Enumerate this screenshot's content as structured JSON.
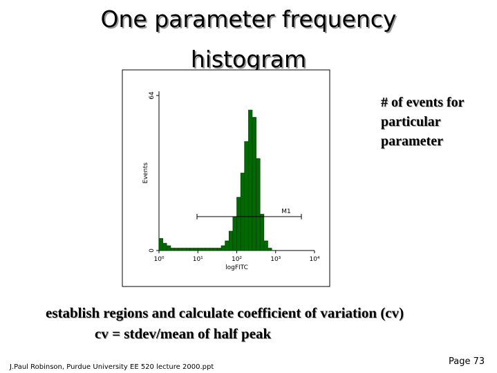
{
  "slide": {
    "title_lines": [
      "One parameter frequency",
      "histogram"
    ],
    "note_lines": [
      "# of events for",
      "particular",
      "parameter"
    ],
    "caption_lines": [
      "establish regions and calculate coefficient of variation (cv)",
      "cv = stdev/mean of half peak"
    ],
    "footer": "J.Paul Robinson, Purdue University EE 520 lecture 2000.ppt",
    "page": "Page 73"
  },
  "chart_data": {
    "type": "histogram",
    "color": "#006a00",
    "x_label": "logFITC",
    "y_label": "Events",
    "x_log": true,
    "xlim": [
      1,
      10000
    ],
    "xticks": [
      {
        "value": 1,
        "label": "10⁰"
      },
      {
        "value": 10,
        "label": "10¹"
      },
      {
        "value": 100,
        "label": "10²"
      },
      {
        "value": 1000,
        "label": "10³"
      },
      {
        "value": 10000,
        "label": "10⁴"
      }
    ],
    "ylim": [
      0,
      64
    ],
    "yticks": [
      0,
      64
    ],
    "bins": [
      1,
      1.26,
      1.58,
      2,
      2.51,
      3.16,
      3.98,
      5.01,
      6.31,
      7.94,
      10,
      12.6,
      15.8,
      20,
      25.1,
      31.6,
      39.8,
      50.1,
      63.1,
      79.4,
      100,
      126,
      158,
      200,
      251,
      316,
      398,
      501,
      631,
      794,
      1000,
      1260,
      1580,
      2000,
      2510,
      3160,
      3980,
      5010,
      6310,
      7940,
      10000
    ],
    "values": [
      5,
      3,
      2,
      1,
      1,
      1,
      1,
      1,
      1,
      1,
      1,
      1,
      1,
      1,
      1,
      1,
      2,
      4,
      8,
      14,
      22,
      32,
      45,
      58,
      55,
      38,
      15,
      4,
      1,
      0,
      0,
      0,
      0,
      0,
      0,
      0,
      0,
      0,
      0,
      0
    ],
    "marker": {
      "label": "M1",
      "range": [
        9.5,
        4600
      ],
      "level": 14
    }
  }
}
